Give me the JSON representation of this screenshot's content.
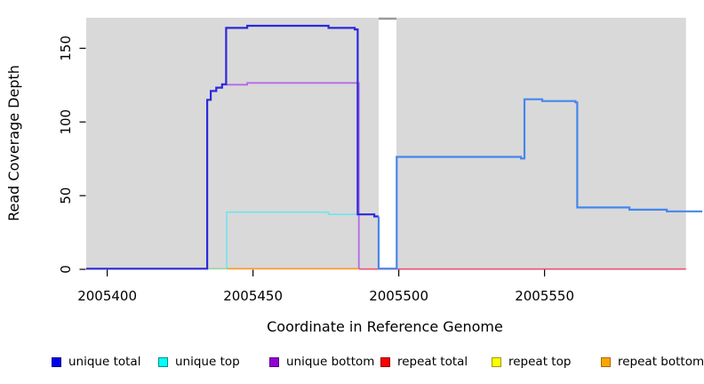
{
  "figure": {
    "background_color": "#ffffff",
    "panel_color": "#d9d9d9",
    "gap_cap_color": "#9a9a9a",
    "axis_color": "#000000"
  },
  "chart_data": {
    "type": "line",
    "title": "",
    "xlabel": "Coordinate in Reference Genome",
    "ylabel": "Read Coverage Depth",
    "xlim": [
      2005392.8,
      2005598.5
    ],
    "ylim": [
      0,
      170.7
    ],
    "grid": "off",
    "legend_position": "bottom",
    "x_ticks": [
      2005400,
      2005450,
      2005500,
      2005550
    ],
    "y_ticks": [
      0,
      50,
      100,
      150
    ],
    "panel_regions": [
      {
        "x0": 2005392.8,
        "x1": 2005493.1
      },
      {
        "x0": 2005499.2,
        "x1": 2005598.5
      }
    ],
    "gap_region": {
      "x0": 2005493.1,
      "x1": 2005499.2
    },
    "series": [
      {
        "name": "repeat-total",
        "legend": "repeat total",
        "color": "#ea5178",
        "width": 1.6,
        "points": [
          [
            2005486.3,
            0.2
          ],
          [
            2005598.5,
            0.2
          ]
        ]
      },
      {
        "name": "repeat-bottom",
        "legend": "repeat bottom",
        "color": "#ff9d33",
        "width": 1.8,
        "points": [
          [
            2005441.0,
            0.4
          ],
          [
            2005486.3,
            0.4
          ]
        ]
      },
      {
        "name": "unique-top-zero-overlap",
        "legend": "",
        "color": "#98d49e",
        "width": 1.6,
        "points": [
          [
            2005434.3,
            0.4
          ],
          [
            2005441.0,
            0.4
          ]
        ]
      },
      {
        "name": "unique-top",
        "legend": "unique top",
        "color": "#6fe3f3",
        "width": 1.6,
        "points": [
          [
            2005441.0,
            0.4
          ],
          [
            2005441.0,
            38.8
          ],
          [
            2005475.9,
            38.8
          ],
          [
            2005475.9,
            37.3
          ],
          [
            2005485.9,
            37.3
          ]
        ]
      },
      {
        "name": "unique-bottom",
        "legend": "unique bottom",
        "color": "#b36ae4",
        "width": 1.8,
        "points": [
          [
            2005434.3,
            0.4
          ],
          [
            2005434.3,
            115
          ],
          [
            2005435.5,
            115
          ],
          [
            2005435.5,
            121
          ],
          [
            2005437.4,
            121
          ],
          [
            2005437.4,
            123.3
          ],
          [
            2005439.4,
            123.3
          ],
          [
            2005439.4,
            125.3
          ],
          [
            2005448.0,
            125.3
          ],
          [
            2005448.0,
            126.5
          ],
          [
            2005486.3,
            126.5
          ],
          [
            2005486.3,
            0.4
          ]
        ]
      },
      {
        "name": "unique-total-left",
        "legend": "unique total",
        "color": "#2b28dc",
        "width": 2.2,
        "points": [
          [
            2005392.8,
            0.4
          ],
          [
            2005434.3,
            0.4
          ],
          [
            2005434.3,
            115
          ],
          [
            2005435.5,
            115
          ],
          [
            2005435.5,
            121
          ],
          [
            2005437.4,
            121
          ],
          [
            2005437.4,
            123.3
          ],
          [
            2005439.4,
            123.3
          ],
          [
            2005439.4,
            125.6
          ],
          [
            2005440.8,
            125.6
          ],
          [
            2005440.8,
            163.8
          ],
          [
            2005448.0,
            163.8
          ],
          [
            2005448.0,
            165.3
          ],
          [
            2005475.9,
            165.3
          ],
          [
            2005475.9,
            163.8
          ],
          [
            2005484.9,
            163.8
          ],
          [
            2005484.9,
            162.8
          ],
          [
            2005485.9,
            162.8
          ],
          [
            2005485.9,
            37.3
          ],
          [
            2005491.6,
            37.3
          ],
          [
            2005491.6,
            35.9
          ],
          [
            2005493.1,
            35.9
          ]
        ]
      },
      {
        "name": "unique-total-right",
        "legend": "unique total",
        "color": "#4587ec",
        "width": 2.2,
        "points": [
          [
            2005493.1,
            35.9
          ],
          [
            2005493.1,
            0.5
          ],
          [
            2005499.3,
            0.5
          ],
          [
            2005499.3,
            76.3
          ],
          [
            2005541.9,
            76.3
          ],
          [
            2005541.9,
            75.2
          ],
          [
            2005543.1,
            75.2
          ],
          [
            2005543.1,
            115.4
          ],
          [
            2005549.2,
            115.4
          ],
          [
            2005549.2,
            114.2
          ],
          [
            2005560.6,
            114.2
          ],
          [
            2005560.6,
            113.3
          ],
          [
            2005561.2,
            113.3
          ],
          [
            2005561.2,
            42
          ],
          [
            2005579.1,
            42
          ],
          [
            2005579.1,
            40.5
          ],
          [
            2005591.9,
            40.5
          ],
          [
            2005591.9,
            39.3
          ],
          [
            2005604.1,
            39.3
          ]
        ]
      }
    ],
    "legend": [
      {
        "label": "unique total",
        "fill": "#0000ee",
        "border": "#000080"
      },
      {
        "label": "unique top",
        "fill": "#00ffff",
        "border": "#008b8b"
      },
      {
        "label": "unique bottom",
        "fill": "#9400d3",
        "border": "#530082"
      },
      {
        "label": "repeat total",
        "fill": "#ff0000",
        "border": "#8b0000"
      },
      {
        "label": "repeat top",
        "fill": "#ffff00",
        "border": "#9b9b00"
      },
      {
        "label": "repeat bottom",
        "fill": "#ffa500",
        "border": "#a56a00"
      }
    ]
  }
}
